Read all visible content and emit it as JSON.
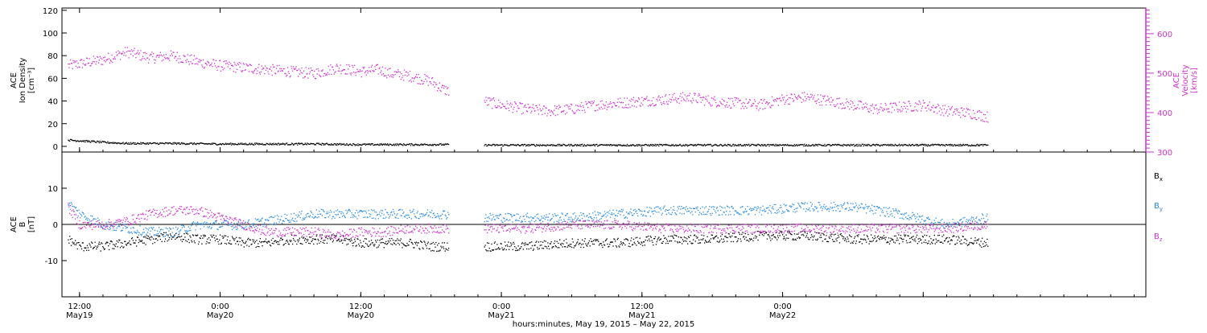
{
  "chart_data": [
    {
      "type": "scatter",
      "panel": "top",
      "ylabel_lines": [
        "ACE",
        "Ion Density",
        "[cm⁻³]"
      ],
      "ylabel_right_lines": [
        "ACE",
        "Velocity",
        "[km/s]"
      ],
      "left_axis": {
        "ylim": [
          -5,
          122
        ],
        "ticks": [
          0,
          20,
          40,
          60,
          80,
          100,
          120
        ],
        "tick_labels": [
          "0",
          "20",
          "40",
          "60",
          "80",
          "100",
          "120"
        ]
      },
      "right_axis": {
        "ylim": [
          300,
          665
        ],
        "ticks": [
          300,
          400,
          500,
          600
        ],
        "tick_labels": [
          "300",
          "400",
          "500",
          "600"
        ]
      },
      "x_hours_range": [
        -1.5,
        91
      ],
      "data_gap_hours": [
        31.5,
        34.5
      ],
      "series": [
        {
          "name": "",
          "axis": "right",
          "color": "#cc33cc",
          "x": [
            -1,
            2,
            4,
            6,
            8,
            10,
            12,
            14,
            16,
            18,
            20,
            22,
            24,
            25.5,
            26.5,
            28,
            30,
            31,
            34.5,
            36,
            38,
            40,
            42,
            44,
            46,
            48,
            50,
            52,
            54,
            56,
            58,
            60,
            62,
            64,
            66,
            68,
            70,
            72,
            74,
            76,
            77.5
          ],
          "y": [
            520,
            535,
            555,
            540,
            545,
            530,
            520,
            515,
            510,
            505,
            500,
            515,
            505,
            510,
            500,
            495,
            480,
            460,
            430,
            420,
            410,
            405,
            410,
            420,
            425,
            430,
            435,
            440,
            430,
            425,
            420,
            435,
            440,
            430,
            420,
            410,
            415,
            420,
            405,
            400,
            390
          ]
        },
        {
          "name": "",
          "axis": "left",
          "color": "#000000",
          "x": [
            -1,
            2,
            4,
            8,
            12,
            16,
            20,
            24,
            26,
            28,
            31,
            34.5,
            40,
            50,
            60,
            70,
            77.5
          ],
          "y": [
            6,
            4,
            3,
            3,
            2.5,
            2.5,
            2.5,
            2,
            2,
            2,
            2,
            1.5,
            1.5,
            1.5,
            1.5,
            1.5,
            1.5
          ]
        }
      ]
    },
    {
      "type": "scatter",
      "panel": "bottom",
      "ylabel_lines": [
        "ACE",
        "B",
        "[nT]"
      ],
      "left_axis": {
        "ylim": [
          -20,
          20
        ],
        "ticks": [
          -10,
          0,
          10
        ],
        "tick_labels": [
          "-10",
          "0",
          "10"
        ]
      },
      "zero_line": true,
      "x_hours_range": [
        -1.5,
        91
      ],
      "data_gap_hours": [
        31.5,
        34.5
      ],
      "series": [
        {
          "name": "Bx",
          "label_base": "B",
          "label_sub": "x",
          "color": "#000000",
          "x": [
            -1,
            0,
            2,
            4,
            6,
            8,
            10,
            12,
            14,
            16,
            18,
            20,
            22,
            24,
            26,
            28,
            30,
            31,
            34.5,
            38,
            42,
            46,
            50,
            54,
            58,
            62,
            66,
            70,
            74,
            77.5
          ],
          "y": [
            -4,
            -6,
            -6,
            -5,
            -4,
            -3,
            -4,
            -4,
            -5,
            -5,
            -4,
            -4,
            -4,
            -5,
            -5,
            -5,
            -6,
            -6,
            -6,
            -6,
            -5,
            -5,
            -4,
            -4,
            -3,
            -3,
            -4,
            -4,
            -4,
            -5
          ]
        },
        {
          "name": "By",
          "label_base": "B",
          "label_sub": "y",
          "color": "#2a8be0",
          "x": [
            -1,
            0,
            2,
            4,
            6,
            8,
            10,
            12,
            14,
            16,
            18,
            20,
            22,
            24,
            26,
            28,
            30,
            31,
            34.5,
            38,
            42,
            46,
            50,
            54,
            58,
            62,
            66,
            70,
            74,
            77.5
          ],
          "y": [
            6,
            3,
            0,
            -1,
            -2,
            -2,
            0,
            0,
            0,
            1,
            2,
            3,
            3,
            3,
            3,
            3,
            3,
            3,
            2,
            2,
            2,
            3,
            4,
            4,
            4,
            5,
            5,
            3,
            0,
            2
          ]
        },
        {
          "name": "Bz",
          "label_base": "B",
          "label_sub": "z",
          "color": "#cc33cc",
          "x": [
            -1,
            0,
            2,
            4,
            6,
            8,
            10,
            12,
            14,
            16,
            18,
            20,
            22,
            24,
            26,
            28,
            30,
            31,
            34.5,
            38,
            42,
            46,
            50,
            54,
            58,
            62,
            66,
            70,
            74,
            77.5
          ],
          "y": [
            5,
            0,
            0,
            1,
            3,
            4,
            4,
            2,
            0,
            -2,
            -2,
            -2,
            -3,
            -2,
            -2,
            -1,
            -1,
            -1,
            -1,
            -1,
            0,
            0,
            -1,
            -1,
            -1,
            -1,
            -1,
            -1,
            -1,
            0
          ]
        }
      ]
    }
  ],
  "x_axis": {
    "tick_hours": [
      0,
      12,
      24,
      36,
      48,
      60,
      72
    ],
    "tick_time_labels": [
      "12:00",
      "0:00",
      "12:00",
      "0:00",
      "12:00",
      "0:00"
    ],
    "tick_date_labels": [
      "May19",
      "May20",
      "May20",
      "May21",
      "May21",
      "May22"
    ],
    "labeled_tick_hours": [
      0,
      12,
      24,
      36,
      48,
      60
    ],
    "xlabel": "hours:minutes, May 19, 2015 – May 22, 2015"
  }
}
